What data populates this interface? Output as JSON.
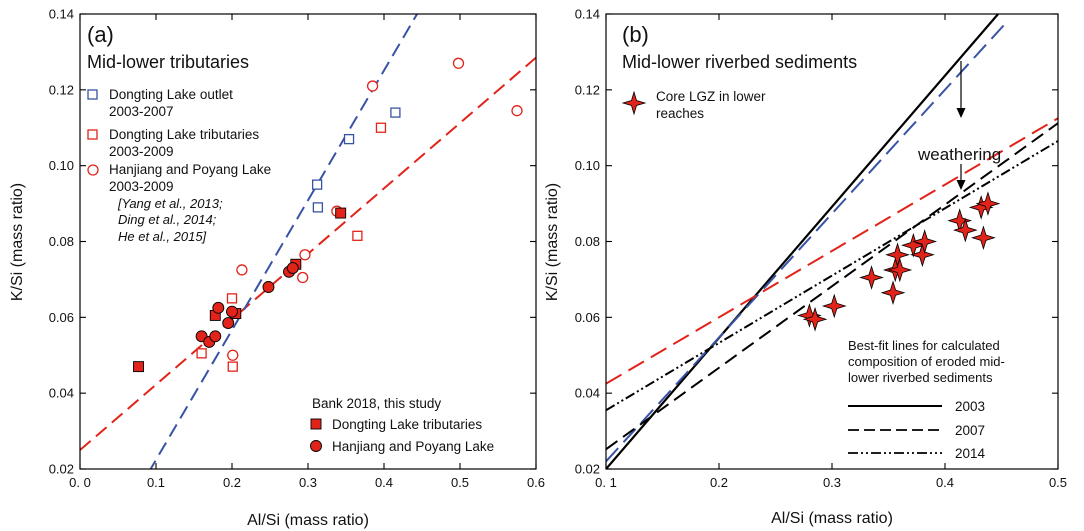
{
  "colors": {
    "red": "#e2231a",
    "blue": "#3953a4",
    "black": "#000000"
  },
  "chart_data": [
    {
      "type": "scatter",
      "panel_label": "(a)",
      "title": "Mid-lower tributaries",
      "xlabel": "Al/Si (mass ratio)",
      "ylabel": "K/Si (mass ratio)",
      "xlim": [
        0.0,
        0.6
      ],
      "ylim": [
        0.02,
        0.14
      ],
      "x_ticks": [
        "0. 0",
        "0.1",
        "0.2",
        "0.3",
        "0.4",
        "0.5",
        "0.6"
      ],
      "y_ticks": [
        "0.02",
        "0.04",
        "0.06",
        "0.08",
        "0.10",
        "0.12",
        "0.14"
      ],
      "legend": {
        "items": [
          {
            "label_lines": [
              "Dongting Lake outlet",
              "2003-2007"
            ],
            "marker": "square-open",
            "color": "#3953a4"
          },
          {
            "label_lines": [
              "Dongting Lake tributaries",
              "2003-2009"
            ],
            "marker": "square-open",
            "color": "#e2231a"
          },
          {
            "label_lines": [
              "Hanjiang and Poyang Lake",
              "2003-2009"
            ],
            "marker": "circle-open",
            "color": "#e2231a"
          }
        ],
        "references": [
          "[Yang et al., 2013;",
          "Ding et al., 2014;",
          "He et al., 2015]"
        ],
        "bank_title": "Bank 2018, this study",
        "bank_items": [
          {
            "label": "Dongting Lake tributaries",
            "marker": "square-filled"
          },
          {
            "label": "Hanjiang and Poyang Lake",
            "marker": "circle-filled"
          }
        ]
      },
      "series": [
        {
          "name": "Dongting Lake outlet 2003-2007",
          "marker": "square-open",
          "color": "#3953a4",
          "x": [
            0.312,
            0.313,
            0.354,
            0.415
          ],
          "y": [
            0.095,
            0.089,
            0.107,
            0.114
          ]
        },
        {
          "name": "Dongting Lake tributaries 2003-2009",
          "marker": "square-open",
          "color": "#e2231a",
          "x": [
            0.16,
            0.2,
            0.201,
            0.365,
            0.396
          ],
          "y": [
            0.0505,
            0.065,
            0.047,
            0.0815,
            0.11
          ]
        },
        {
          "name": "Hanjiang and Poyang Lake 2003-2009",
          "marker": "circle-open",
          "color": "#e2231a",
          "x": [
            0.201,
            0.213,
            0.293,
            0.296,
            0.338,
            0.385,
            0.498,
            0.575
          ],
          "y": [
            0.05,
            0.0725,
            0.0705,
            0.0765,
            0.088,
            0.121,
            0.127,
            0.1145
          ]
        },
        {
          "name": "Dongting Lake tributaries",
          "marker": "square-filled",
          "color": "#e2231a",
          "x": [
            0.077,
            0.178,
            0.205,
            0.284,
            0.343
          ],
          "y": [
            0.047,
            0.0605,
            0.061,
            0.074,
            0.0875
          ]
        },
        {
          "name": "Hanjiang and Poyang Lake",
          "marker": "circle-filled",
          "color": "#e2231a",
          "x": [
            0.16,
            0.17,
            0.178,
            0.182,
            0.195,
            0.2,
            0.248,
            0.275,
            0.28
          ],
          "y": [
            0.055,
            0.0535,
            0.055,
            0.0625,
            0.0585,
            0.0615,
            0.068,
            0.072,
            0.073
          ]
        }
      ],
      "lines": [
        {
          "color": "#e2231a",
          "style": "dash",
          "x": [
            0.0,
            0.6
          ],
          "y": [
            0.025,
            0.1285
          ]
        },
        {
          "color": "#3953a4",
          "style": "dash",
          "x": [
            0.09,
            0.445
          ],
          "y": [
            0.019,
            0.1405
          ]
        }
      ]
    },
    {
      "type": "scatter",
      "panel_label": "(b)",
      "title": "Mid-lower riverbed sediments",
      "xlabel": "Al/Si (mass ratio)",
      "ylabel": "K/Si (mass ratio)",
      "xlim": [
        0.1,
        0.5
      ],
      "ylim": [
        0.02,
        0.14
      ],
      "x_ticks": [
        "0. 1",
        "0.2",
        "0.3",
        "0.4",
        "0.5"
      ],
      "y_ticks": [
        "0.02",
        "0.04",
        "0.06",
        "0.08",
        "0.10",
        "0.12",
        "0.14"
      ],
      "star_legend": {
        "label_lines": [
          "Core LGZ in lower",
          "reaches"
        ]
      },
      "annotation": "weathering",
      "lines_legend": {
        "title_lines": [
          "Best-fit lines for calculated",
          "composition of eroded mid-",
          "lower riverbed  sediments"
        ],
        "items": [
          {
            "label": "2003",
            "style": "solid"
          },
          {
            "label": "2007",
            "style": "dash"
          },
          {
            "label": "2014",
            "style": "dashdotdot"
          }
        ]
      },
      "series": [
        {
          "name": "Core LGZ in lower reaches",
          "marker": "star",
          "color": "#e2231a",
          "x": [
            0.28,
            0.285,
            0.302,
            0.335,
            0.354,
            0.356,
            0.358,
            0.36,
            0.372,
            0.38,
            0.382,
            0.413,
            0.418,
            0.432,
            0.434,
            0.438
          ],
          "y": [
            0.0605,
            0.0595,
            0.063,
            0.0705,
            0.0665,
            0.0725,
            0.0765,
            0.0725,
            0.079,
            0.0765,
            0.08,
            0.0855,
            0.083,
            0.089,
            0.081,
            0.09
          ]
        }
      ],
      "lines": [
        {
          "color": "#000000",
          "style": "solid",
          "x": [
            0.1,
            0.447
          ],
          "y": [
            0.02,
            0.14
          ]
        },
        {
          "color": "#3953a4",
          "style": "longdash",
          "x": [
            0.1,
            0.455
          ],
          "y": [
            0.022,
            0.138
          ]
        },
        {
          "color": "#e2231a",
          "style": "longdash",
          "x": [
            0.1,
            0.5
          ],
          "y": [
            0.0425,
            0.1125
          ]
        },
        {
          "color": "#000000",
          "style": "dash",
          "x": [
            0.1,
            0.5
          ],
          "y": [
            0.0252,
            0.1112
          ]
        },
        {
          "color": "#000000",
          "style": "dashdotdot",
          "x": [
            0.1,
            0.5
          ],
          "y": [
            0.0355,
            0.1065
          ]
        }
      ]
    }
  ]
}
